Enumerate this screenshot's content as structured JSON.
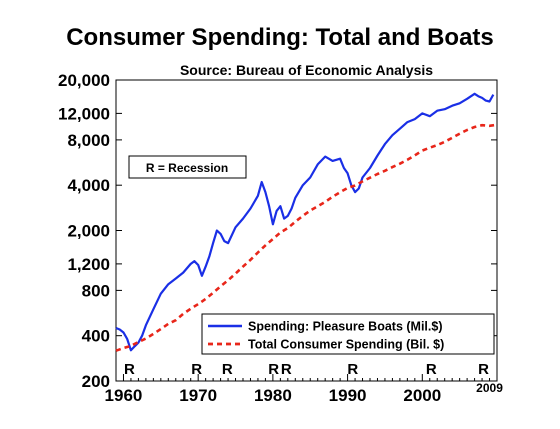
{
  "chart_data": {
    "type": "line",
    "title": "Consumer Spending: Total and Boats",
    "subtitle": "Source: Bureau of Economic Analysis",
    "xlabel": "",
    "ylabel": "",
    "x_scale": "linear",
    "y_scale": "log",
    "xlim": [
      1959,
      2010
    ],
    "ylim": [
      200,
      20000
    ],
    "x_ticks": [
      1960,
      1970,
      1980,
      1990,
      2000
    ],
    "x_end_label": "2009",
    "y_ticks": [
      200,
      400,
      800,
      1200,
      2000,
      4000,
      8000,
      12000,
      20000
    ],
    "y_tick_labels": [
      "200",
      "400",
      "800",
      "1,200",
      "2,000",
      "4,000",
      "8,000",
      "12,000",
      "20,000"
    ],
    "recession_note": "R = Recession",
    "recession_marker": "R",
    "recession_years": [
      1960.8,
      1969.8,
      1973.9,
      1980.1,
      1981.8,
      1990.7,
      2001.2,
      2008.2
    ],
    "grid": false,
    "legend_position": "bottom-right",
    "series": [
      {
        "name": "Spending: Pleasure Boats (Mil.$)",
        "color": "#1a2fe6",
        "style": "solid",
        "x": [
          1959,
          1959.5,
          1960,
          1960.5,
          1961,
          1961.5,
          1962,
          1962.5,
          1963,
          1964,
          1965,
          1966,
          1967,
          1968,
          1969,
          1969.5,
          1970,
          1970.5,
          1971,
          1971.5,
          1972,
          1972.5,
          1973,
          1973.5,
          1974,
          1975,
          1976,
          1977,
          1978,
          1978.5,
          1979,
          1979.5,
          1980,
          1980.5,
          1981,
          1981.5,
          1982,
          1982.5,
          1983,
          1984,
          1985,
          1986,
          1987,
          1988,
          1989,
          1989.5,
          1990,
          1990.5,
          1991,
          1991.5,
          1992,
          1993,
          1994,
          1995,
          1996,
          1997,
          1998,
          1999,
          2000,
          2001,
          2002,
          2003,
          2004,
          2005,
          2006,
          2007,
          2007.5,
          2008,
          2008.5,
          2009,
          2009.5
        ],
        "values": [
          450,
          440,
          420,
          380,
          320,
          340,
          360,
          400,
          470,
          600,
          760,
          880,
          960,
          1050,
          1200,
          1250,
          1180,
          1000,
          1150,
          1350,
          1650,
          2000,
          1900,
          1700,
          1650,
          2100,
          2400,
          2800,
          3400,
          4200,
          3600,
          2900,
          2200,
          2700,
          2900,
          2400,
          2500,
          2800,
          3300,
          4000,
          4500,
          5500,
          6200,
          5800,
          6000,
          5200,
          4800,
          4000,
          3600,
          3800,
          4500,
          5200,
          6300,
          7500,
          8600,
          9500,
          10500,
          11000,
          12000,
          11500,
          12500,
          12800,
          13500,
          14000,
          15000,
          16200,
          15600,
          15200,
          14600,
          14400,
          16000
        ]
      },
      {
        "name": "Total Consumer Spending (Bil. $)",
        "color": "#e8261a",
        "style": "dashed",
        "x": [
          1959,
          1960,
          1961,
          1962,
          1963,
          1964,
          1965,
          1966,
          1967,
          1968,
          1969,
          1970,
          1971,
          1972,
          1973,
          1974,
          1975,
          1976,
          1977,
          1978,
          1979,
          1980,
          1981,
          1982,
          1983,
          1984,
          1985,
          1986,
          1987,
          1988,
          1989,
          1990,
          1991,
          1992,
          1993,
          1994,
          1995,
          1996,
          1997,
          1998,
          1999,
          2000,
          2001,
          2002,
          2003,
          2004,
          2005,
          2006,
          2007,
          2008,
          2009,
          2009.8
        ],
        "values": [
          318,
          331,
          342,
          363,
          383,
          411,
          443,
          480,
          507,
          558,
          605,
          649,
          702,
          771,
          852,
          933,
          1034,
          1151,
          1278,
          1429,
          1592,
          1755,
          1940,
          2076,
          2288,
          2501,
          2718,
          2896,
          3097,
          3350,
          3594,
          3835,
          3981,
          4236,
          4484,
          4750,
          4988,
          5275,
          5561,
          5903,
          6307,
          6792,
          7103,
          7385,
          7765,
          8260,
          8794,
          9304,
          9750,
          10014,
          9930,
          10050
        ]
      }
    ]
  }
}
